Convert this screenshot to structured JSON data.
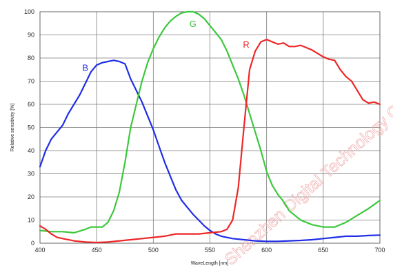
{
  "chart_data": {
    "type": "line",
    "xlabel": "WaveLength [nm]",
    "ylabel": "Relative sensitivity [%]",
    "xlim": [
      400,
      700
    ],
    "ylim": [
      0,
      100
    ],
    "xticks": [
      "400",
      "450",
      "500",
      "550",
      "600",
      "650",
      "700"
    ],
    "yticks": [
      "0",
      "10",
      "20",
      "30",
      "40",
      "50",
      "60",
      "70",
      "80",
      "90",
      "100"
    ],
    "grid": true,
    "watermark": "Shenzhen Digital Technology Co., Ltd",
    "series": [
      {
        "name": "B",
        "color": "#1f2de6",
        "label_at": [
          440,
          76
        ],
        "points": [
          [
            400,
            33
          ],
          [
            405,
            40
          ],
          [
            410,
            45
          ],
          [
            415,
            48
          ],
          [
            420,
            51
          ],
          [
            425,
            56
          ],
          [
            430,
            60
          ],
          [
            435,
            64
          ],
          [
            440,
            69
          ],
          [
            445,
            74
          ],
          [
            450,
            77
          ],
          [
            455,
            78
          ],
          [
            460,
            78.5
          ],
          [
            465,
            79
          ],
          [
            470,
            78.5
          ],
          [
            475,
            77.5
          ],
          [
            480,
            71
          ],
          [
            485,
            66
          ],
          [
            490,
            61
          ],
          [
            495,
            55
          ],
          [
            500,
            49
          ],
          [
            505,
            42
          ],
          [
            510,
            35
          ],
          [
            515,
            29
          ],
          [
            520,
            23
          ],
          [
            525,
            18.5
          ],
          [
            530,
            15.5
          ],
          [
            535,
            12.5
          ],
          [
            540,
            10
          ],
          [
            545,
            7.5
          ],
          [
            550,
            5.5
          ],
          [
            555,
            4
          ],
          [
            560,
            3
          ],
          [
            570,
            2
          ],
          [
            580,
            1.5
          ],
          [
            590,
            1
          ],
          [
            600,
            0.8
          ],
          [
            610,
            0.8
          ],
          [
            620,
            1
          ],
          [
            630,
            1.2
          ],
          [
            640,
            1.5
          ],
          [
            650,
            2
          ],
          [
            660,
            2.5
          ],
          [
            670,
            3
          ],
          [
            680,
            3
          ],
          [
            690,
            3.3
          ],
          [
            700,
            3.5
          ]
        ]
      },
      {
        "name": "G",
        "color": "#3cc83c",
        "label_at": [
          535,
          95
        ],
        "points": [
          [
            400,
            5.5
          ],
          [
            410,
            5
          ],
          [
            420,
            5
          ],
          [
            430,
            4.5
          ],
          [
            440,
            6
          ],
          [
            445,
            7
          ],
          [
            450,
            7
          ],
          [
            455,
            7
          ],
          [
            460,
            9
          ],
          [
            465,
            14
          ],
          [
            470,
            22
          ],
          [
            475,
            35
          ],
          [
            480,
            50
          ],
          [
            485,
            60
          ],
          [
            490,
            70
          ],
          [
            495,
            78
          ],
          [
            500,
            84
          ],
          [
            505,
            89
          ],
          [
            510,
            93
          ],
          [
            515,
            96
          ],
          [
            520,
            98
          ],
          [
            525,
            99.5
          ],
          [
            530,
            100
          ],
          [
            535,
            100
          ],
          [
            540,
            99
          ],
          [
            545,
            97
          ],
          [
            550,
            94
          ],
          [
            555,
            91
          ],
          [
            560,
            88
          ],
          [
            565,
            83
          ],
          [
            570,
            77
          ],
          [
            575,
            71
          ],
          [
            580,
            64
          ],
          [
            585,
            56
          ],
          [
            590,
            48
          ],
          [
            595,
            40
          ],
          [
            600,
            31
          ],
          [
            605,
            25
          ],
          [
            610,
            21
          ],
          [
            615,
            18
          ],
          [
            620,
            14
          ],
          [
            625,
            12
          ],
          [
            630,
            10
          ],
          [
            640,
            8
          ],
          [
            650,
            7
          ],
          [
            660,
            7
          ],
          [
            670,
            9
          ],
          [
            680,
            12
          ],
          [
            690,
            15
          ],
          [
            700,
            18.5
          ]
        ]
      },
      {
        "name": "R",
        "color": "#ee2626",
        "label_at": [
          582,
          86
        ],
        "points": [
          [
            400,
            7.5
          ],
          [
            405,
            6
          ],
          [
            410,
            4
          ],
          [
            415,
            2.5
          ],
          [
            420,
            2
          ],
          [
            430,
            1
          ],
          [
            440,
            0.5
          ],
          [
            450,
            0.3
          ],
          [
            460,
            0.5
          ],
          [
            470,
            1
          ],
          [
            480,
            1.5
          ],
          [
            490,
            2
          ],
          [
            500,
            2.5
          ],
          [
            510,
            3
          ],
          [
            520,
            4
          ],
          [
            530,
            4
          ],
          [
            540,
            4
          ],
          [
            550,
            4.5
          ],
          [
            560,
            5
          ],
          [
            565,
            6
          ],
          [
            570,
            10
          ],
          [
            575,
            24
          ],
          [
            580,
            50
          ],
          [
            585,
            75
          ],
          [
            590,
            83
          ],
          [
            595,
            87
          ],
          [
            600,
            88
          ],
          [
            605,
            87
          ],
          [
            610,
            86
          ],
          [
            615,
            86.5
          ],
          [
            620,
            85
          ],
          [
            625,
            85
          ],
          [
            630,
            85.5
          ],
          [
            635,
            84.5
          ],
          [
            640,
            83.5
          ],
          [
            645,
            82
          ],
          [
            650,
            80.5
          ],
          [
            655,
            79.5
          ],
          [
            660,
            79
          ],
          [
            665,
            75
          ],
          [
            670,
            72
          ],
          [
            675,
            70
          ],
          [
            680,
            66
          ],
          [
            685,
            62
          ],
          [
            690,
            60.5
          ],
          [
            695,
            61
          ],
          [
            700,
            60
          ]
        ]
      }
    ]
  }
}
